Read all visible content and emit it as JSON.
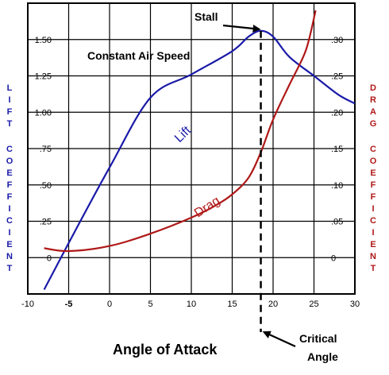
{
  "chart_data": {
    "type": "line",
    "xlabel": "Angle of Attack",
    "x_ticks": [
      "-10",
      "-5",
      "0",
      "5",
      "10",
      "15",
      "20",
      "25",
      "30"
    ],
    "xlim": [
      -10,
      30
    ],
    "left_axis": {
      "label": "LIFT COEFFICIENT",
      "ticks": [
        "0",
        ".25",
        ".50",
        ".75",
        "1.00",
        "1.25",
        "1.50"
      ],
      "ylim": [
        -0.25,
        1.75
      ],
      "color": "#1a1aa8"
    },
    "right_axis": {
      "label": "DRAG COEFFICIENT",
      "ticks": [
        "0",
        ".05",
        ".10",
        ".15",
        ".20",
        ".25",
        ".30"
      ],
      "ylim": [
        -0.05,
        0.35
      ],
      "color": "#b01818"
    },
    "grid": true,
    "series": [
      {
        "name": "Lift",
        "axis": "left",
        "color": "#1a1aa8",
        "x": [
          -8,
          -5,
          0,
          5,
          10,
          15,
          17,
          18.5,
          20,
          22,
          25,
          28,
          30
        ],
        "y": [
          -0.22,
          0.1,
          0.62,
          1.1,
          1.26,
          1.42,
          1.52,
          1.56,
          1.52,
          1.38,
          1.25,
          1.12,
          1.06
        ]
      },
      {
        "name": "Drag",
        "axis": "right",
        "color": "#b01818",
        "x": [
          -8,
          -5,
          0,
          5,
          10,
          13,
          15,
          17,
          18.5,
          20,
          22,
          24,
          25.2
        ],
        "y": [
          0.013,
          0.009,
          0.016,
          0.033,
          0.055,
          0.072,
          0.087,
          0.11,
          0.145,
          0.19,
          0.238,
          0.285,
          0.34
        ]
      }
    ],
    "annotations": {
      "title": "Constant Air Speed",
      "stall": "Stall",
      "critical": "Critical",
      "angle": "Angle",
      "critical_angle_x": 18.5,
      "stall_point": [
        18.5,
        1.56
      ]
    }
  }
}
